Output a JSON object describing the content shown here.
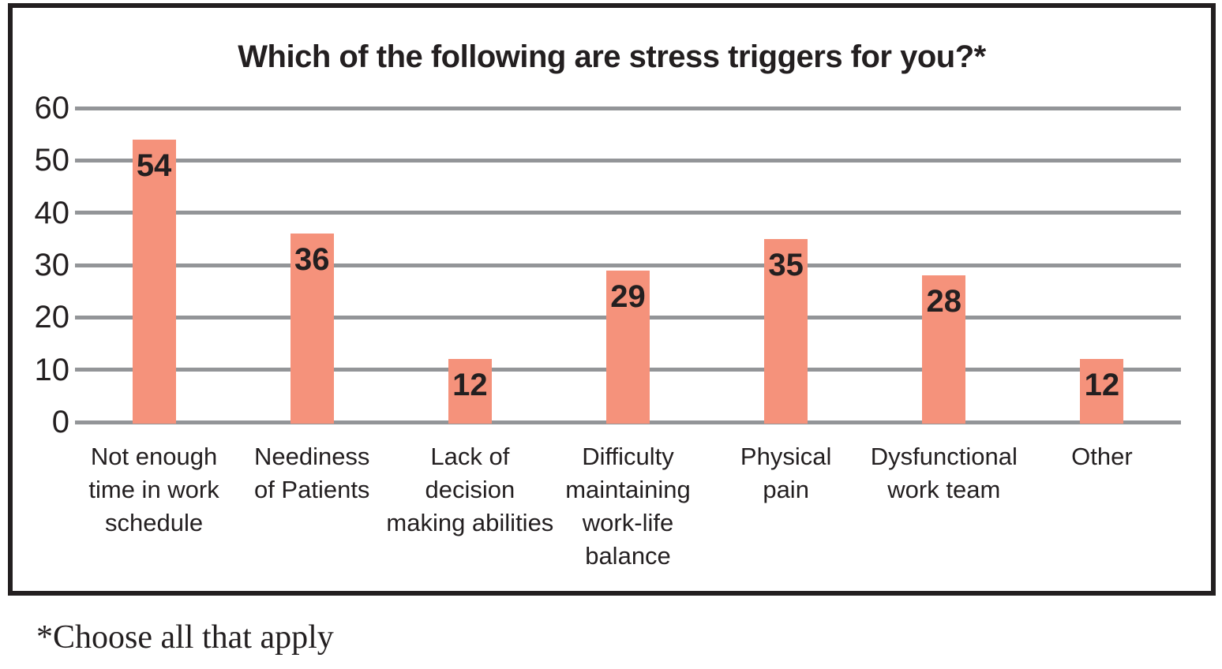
{
  "chart_data": {
    "type": "bar",
    "title": "Which of the following are stress triggers for you?*",
    "categories": [
      "Not enough\ntime in work\nschedule",
      "Neediness\nof Patients",
      "Lack of\ndecision\nmaking abilities",
      "Difficulty\nmaintaining\nwork-life\nbalance",
      "Physical\npain",
      "Dysfunctional\nwork team",
      "Other"
    ],
    "values": [
      54,
      36,
      12,
      29,
      35,
      28,
      12
    ],
    "xlabel": "",
    "ylabel": "",
    "ylim": [
      0,
      60
    ],
    "y_ticks": [
      0,
      10,
      20,
      30,
      40,
      50,
      60
    ],
    "grid": true,
    "legend": "none",
    "value_label_position": "inside-top",
    "colors": {
      "bar": "#f5927b",
      "gridline": "#939598",
      "frame_border": "#231f20",
      "text": "#231f20"
    }
  },
  "footnote": "*Choose all that apply"
}
